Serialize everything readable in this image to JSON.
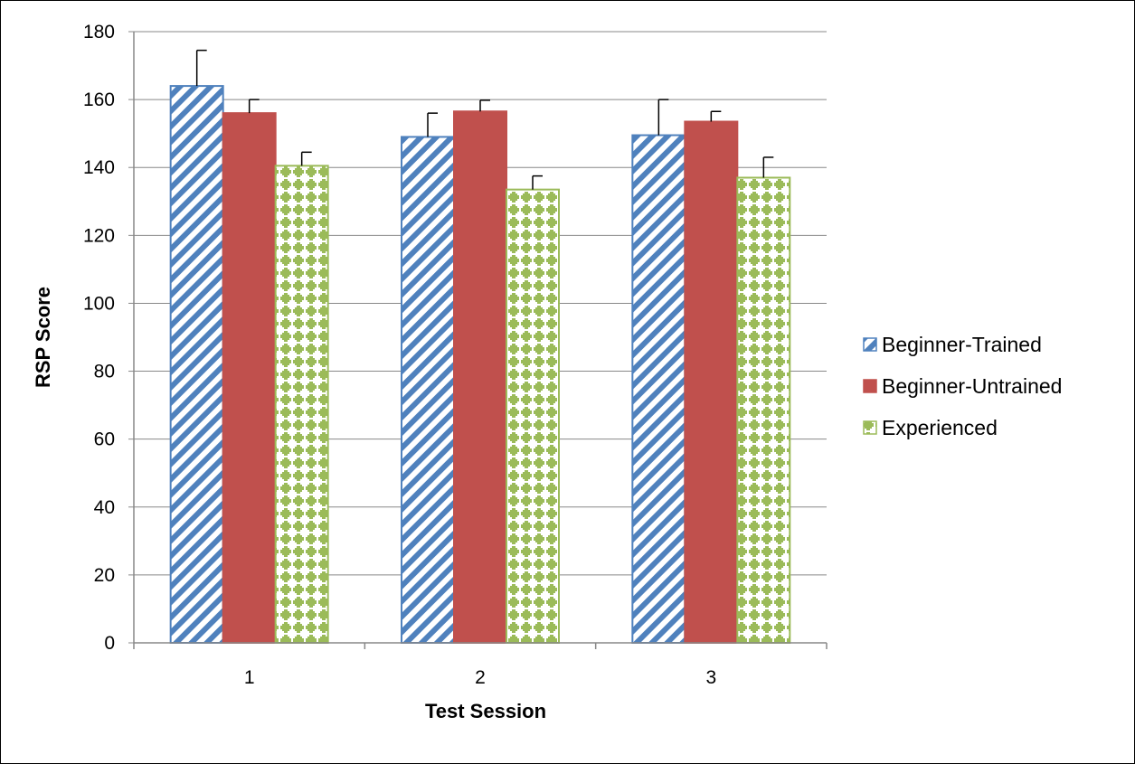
{
  "chart_data": {
    "type": "bar",
    "title": "",
    "xlabel": "Test Session",
    "ylabel": "RSP Score",
    "categories": [
      "1",
      "2",
      "3"
    ],
    "ylim": [
      0,
      180
    ],
    "yticks": [
      0,
      20,
      40,
      60,
      80,
      100,
      120,
      140,
      160,
      180
    ],
    "grid": true,
    "legend_position": "right",
    "error_bars": true,
    "series": [
      {
        "name": "Beginner-Trained",
        "values": [
          164,
          149,
          149.5
        ],
        "error_plus": [
          10.5,
          7,
          10.5
        ],
        "color": "#4f81bd",
        "pattern": "diagonal-stripes"
      },
      {
        "name": "Beginner-Untrained",
        "values": [
          156,
          156.5,
          153.5
        ],
        "error_plus": [
          4,
          3.3,
          3
        ],
        "color": "#c0504d",
        "pattern": "solid"
      },
      {
        "name": "Experienced",
        "values": [
          140.5,
          133.5,
          137
        ],
        "error_plus": [
          4,
          4,
          6
        ],
        "color": "#9bbb59",
        "pattern": "dotted-grid"
      }
    ]
  }
}
